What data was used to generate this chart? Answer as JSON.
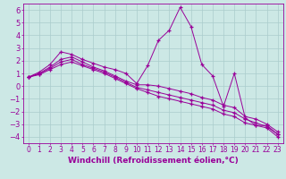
{
  "xlabel": "Windchill (Refroidissement éolien,°C)",
  "bg_color": "#cce8e5",
  "line_color": "#990099",
  "grid_color": "#aacccc",
  "xlim": [
    -0.5,
    23.5
  ],
  "ylim": [
    -4.5,
    6.5
  ],
  "xticks": [
    0,
    1,
    2,
    3,
    4,
    5,
    6,
    7,
    8,
    9,
    10,
    11,
    12,
    13,
    14,
    15,
    16,
    17,
    18,
    19,
    20,
    21,
    22,
    23
  ],
  "yticks": [
    -4,
    -3,
    -2,
    -1,
    0,
    1,
    2,
    3,
    4,
    5,
    6
  ],
  "lines": [
    {
      "x": [
        0,
        1,
        2,
        3,
        4,
        5,
        6,
        7,
        8,
        9,
        10,
        11,
        12,
        13,
        14,
        15,
        16,
        17,
        18,
        19,
        20,
        21,
        22,
        23
      ],
      "y": [
        0.7,
        1.1,
        1.7,
        2.7,
        2.5,
        2.1,
        1.8,
        1.5,
        1.3,
        1.0,
        0.2,
        1.6,
        3.6,
        4.4,
        6.2,
        4.7,
        1.7,
        0.8,
        -1.6,
        1.0,
        -2.5,
        -3.1,
        -3.1,
        -3.8
      ]
    },
    {
      "x": [
        0,
        1,
        2,
        3,
        4,
        5,
        6,
        7,
        8,
        9,
        10,
        11,
        12,
        13,
        14,
        15,
        16,
        17,
        18,
        19,
        20,
        21,
        22,
        23
      ],
      "y": [
        0.7,
        1.0,
        1.5,
        2.1,
        2.3,
        1.9,
        1.5,
        1.2,
        0.8,
        0.4,
        0.1,
        0.1,
        0.0,
        -0.2,
        -0.4,
        -0.6,
        -0.9,
        -1.1,
        -1.5,
        -1.7,
        -2.4,
        -2.6,
        -3.0,
        -3.6
      ]
    },
    {
      "x": [
        0,
        1,
        2,
        3,
        4,
        5,
        6,
        7,
        8,
        9,
        10,
        11,
        12,
        13,
        14,
        15,
        16,
        17,
        18,
        19,
        20,
        21,
        22,
        23
      ],
      "y": [
        0.7,
        0.95,
        1.4,
        1.9,
        2.1,
        1.7,
        1.4,
        1.1,
        0.7,
        0.3,
        -0.1,
        -0.3,
        -0.5,
        -0.7,
        -0.9,
        -1.1,
        -1.3,
        -1.5,
        -1.9,
        -2.1,
        -2.6,
        -2.9,
        -3.2,
        -3.8
      ]
    },
    {
      "x": [
        0,
        1,
        2,
        3,
        4,
        5,
        6,
        7,
        8,
        9,
        10,
        11,
        12,
        13,
        14,
        15,
        16,
        17,
        18,
        19,
        20,
        21,
        22,
        23
      ],
      "y": [
        0.7,
        0.9,
        1.3,
        1.7,
        1.9,
        1.6,
        1.3,
        1.0,
        0.6,
        0.2,
        -0.2,
        -0.5,
        -0.8,
        -1.0,
        -1.2,
        -1.4,
        -1.6,
        -1.8,
        -2.2,
        -2.4,
        -2.9,
        -3.1,
        -3.3,
        -4.0
      ]
    }
  ],
  "xlabel_fontsize": 6.5,
  "ytick_fontsize": 6,
  "xtick_fontsize": 5.5
}
